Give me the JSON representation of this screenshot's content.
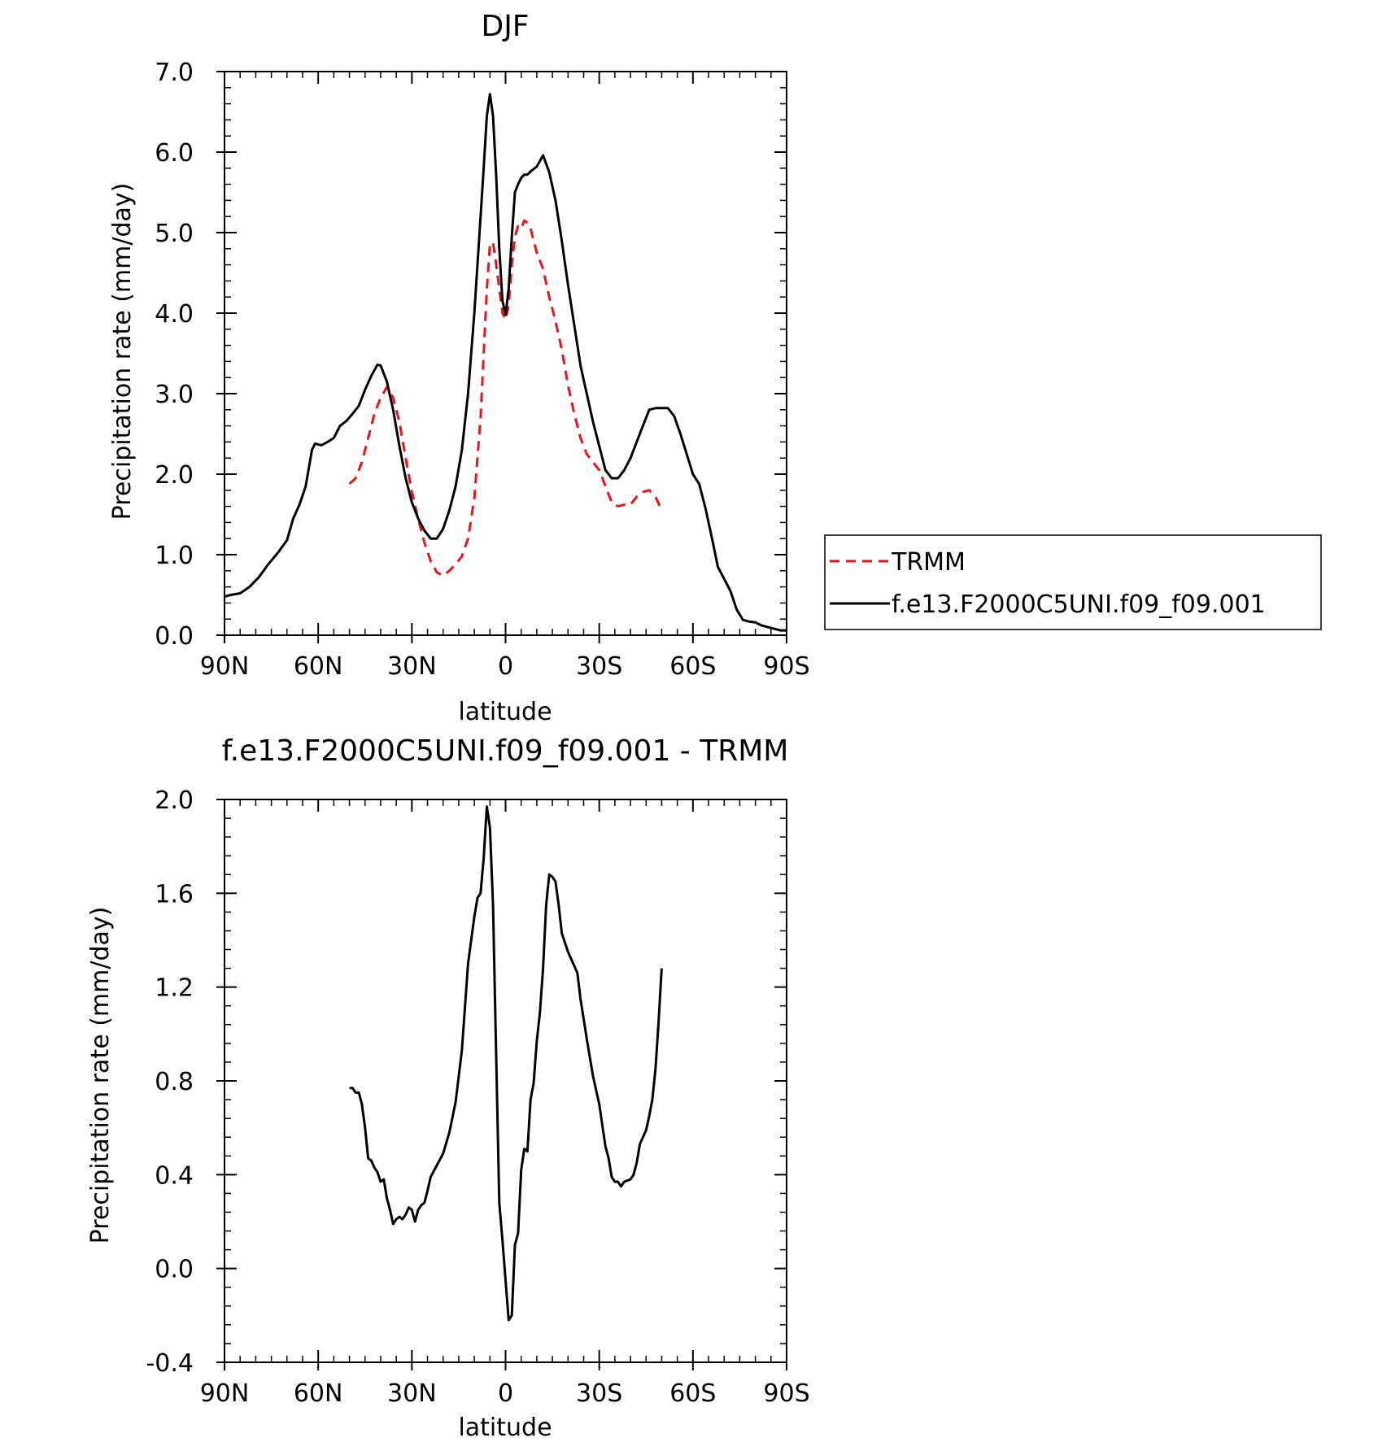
{
  "chart_data": [
    {
      "type": "line",
      "title": "DJF",
      "xlabel": "latitude",
      "ylabel": "Precipitation rate (mm/day)",
      "xlim": [
        90,
        -90
      ],
      "ylim": [
        0,
        7
      ],
      "xticks": [
        {
          "value": 90,
          "label": "90N"
        },
        {
          "value": 60,
          "label": "60N"
        },
        {
          "value": 30,
          "label": "30N"
        },
        {
          "value": 0,
          "label": "0"
        },
        {
          "value": -30,
          "label": "30S"
        },
        {
          "value": -60,
          "label": "60S"
        },
        {
          "value": -90,
          "label": "90S"
        }
      ],
      "yticks": [
        {
          "value": 0,
          "label": "0.0"
        },
        {
          "value": 1,
          "label": "1.0"
        },
        {
          "value": 2,
          "label": "2.0"
        },
        {
          "value": 3,
          "label": "3.0"
        },
        {
          "value": 4,
          "label": "4.0"
        },
        {
          "value": 5,
          "label": "5.0"
        },
        {
          "value": 6,
          "label": "6.0"
        },
        {
          "value": 7,
          "label": "7.0"
        }
      ],
      "legend_position": "right",
      "series": [
        {
          "name": "TRMM",
          "color": "#e8141b",
          "style": "dashed",
          "points": [
            [
              50,
              1.88
            ],
            [
              48,
              1.95
            ],
            [
              46,
              2.15
            ],
            [
              44,
              2.45
            ],
            [
              42,
              2.75
            ],
            [
              40,
              2.95
            ],
            [
              38,
              3.08
            ],
            [
              36,
              2.95
            ],
            [
              34,
              2.65
            ],
            [
              32,
              2.2
            ],
            [
              30,
              1.78
            ],
            [
              28,
              1.45
            ],
            [
              26,
              1.15
            ],
            [
              24,
              0.92
            ],
            [
              22,
              0.78
            ],
            [
              20,
              0.74
            ],
            [
              18,
              0.8
            ],
            [
              16,
              0.88
            ],
            [
              14,
              0.98
            ],
            [
              12,
              1.2
            ],
            [
              10,
              1.7
            ],
            [
              8,
              2.7
            ],
            [
              7,
              3.5
            ],
            [
              6,
              4.3
            ],
            [
              5,
              4.85
            ],
            [
              4,
              4.88
            ],
            [
              3,
              4.6
            ],
            [
              2,
              4.3
            ],
            [
              1,
              4.0
            ],
            [
              0,
              3.92
            ],
            [
              -1,
              4.1
            ],
            [
              -2,
              4.6
            ],
            [
              -3,
              4.95
            ],
            [
              -4,
              5.08
            ],
            [
              -5,
              5.05
            ],
            [
              -6,
              5.15
            ],
            [
              -7,
              5.12
            ],
            [
              -8,
              5.05
            ],
            [
              -10,
              4.75
            ],
            [
              -12,
              4.55
            ],
            [
              -14,
              4.2
            ],
            [
              -16,
              3.9
            ],
            [
              -18,
              3.55
            ],
            [
              -20,
              3.1
            ],
            [
              -22,
              2.75
            ],
            [
              -24,
              2.45
            ],
            [
              -26,
              2.25
            ],
            [
              -28,
              2.15
            ],
            [
              -30,
              2.05
            ],
            [
              -32,
              1.85
            ],
            [
              -34,
              1.65
            ],
            [
              -36,
              1.6
            ],
            [
              -38,
              1.62
            ],
            [
              -40,
              1.62
            ],
            [
              -42,
              1.72
            ],
            [
              -44,
              1.78
            ],
            [
              -46,
              1.8
            ],
            [
              -48,
              1.72
            ],
            [
              -50,
              1.55
            ]
          ]
        },
        {
          "name": "f.e13.F2000C5UNI.f09_f09.001",
          "color": "#000000",
          "style": "solid",
          "points": [
            [
              90,
              0.48
            ],
            [
              88,
              0.5
            ],
            [
              85,
              0.52
            ],
            [
              82,
              0.6
            ],
            [
              79,
              0.72
            ],
            [
              76,
              0.88
            ],
            [
              73,
              1.02
            ],
            [
              70,
              1.18
            ],
            [
              68,
              1.45
            ],
            [
              66,
              1.62
            ],
            [
              64,
              1.85
            ],
            [
              62,
              2.3
            ],
            [
              61,
              2.38
            ],
            [
              59,
              2.36
            ],
            [
              57,
              2.4
            ],
            [
              55,
              2.45
            ],
            [
              53,
              2.6
            ],
            [
              51,
              2.66
            ],
            [
              49,
              2.75
            ],
            [
              47,
              2.85
            ],
            [
              45,
              3.05
            ],
            [
              43,
              3.22
            ],
            [
              41,
              3.36
            ],
            [
              40,
              3.35
            ],
            [
              38,
              3.15
            ],
            [
              36,
              2.8
            ],
            [
              34,
              2.35
            ],
            [
              32,
              1.95
            ],
            [
              30,
              1.65
            ],
            [
              28,
              1.45
            ],
            [
              26,
              1.3
            ],
            [
              24,
              1.2
            ],
            [
              22,
              1.2
            ],
            [
              20,
              1.32
            ],
            [
              18,
              1.55
            ],
            [
              16,
              1.85
            ],
            [
              14,
              2.3
            ],
            [
              12,
              3.0
            ],
            [
              10,
              4.0
            ],
            [
              8,
              5.2
            ],
            [
              7,
              5.8
            ],
            [
              6,
              6.45
            ],
            [
              5,
              6.72
            ],
            [
              4,
              6.45
            ],
            [
              3,
              5.7
            ],
            [
              2,
              4.8
            ],
            [
              1,
              4.15
            ],
            [
              0,
              3.98
            ],
            [
              -1,
              4.3
            ],
            [
              -2,
              4.95
            ],
            [
              -3,
              5.5
            ],
            [
              -4,
              5.6
            ],
            [
              -5,
              5.68
            ],
            [
              -6,
              5.72
            ],
            [
              -7,
              5.72
            ],
            [
              -8,
              5.76
            ],
            [
              -10,
              5.82
            ],
            [
              -12,
              5.96
            ],
            [
              -14,
              5.75
            ],
            [
              -16,
              5.4
            ],
            [
              -18,
              4.9
            ],
            [
              -20,
              4.35
            ],
            [
              -22,
              3.85
            ],
            [
              -24,
              3.35
            ],
            [
              -26,
              3.0
            ],
            [
              -28,
              2.65
            ],
            [
              -30,
              2.35
            ],
            [
              -32,
              2.05
            ],
            [
              -34,
              1.95
            ],
            [
              -36,
              1.95
            ],
            [
              -38,
              2.05
            ],
            [
              -40,
              2.2
            ],
            [
              -42,
              2.4
            ],
            [
              -44,
              2.6
            ],
            [
              -46,
              2.8
            ],
            [
              -48,
              2.82
            ],
            [
              -50,
              2.82
            ],
            [
              -52,
              2.82
            ],
            [
              -54,
              2.72
            ],
            [
              -56,
              2.5
            ],
            [
              -58,
              2.25
            ],
            [
              -60,
              2.0
            ],
            [
              -62,
              1.88
            ],
            [
              -64,
              1.58
            ],
            [
              -66,
              1.22
            ],
            [
              -68,
              0.85
            ],
            [
              -70,
              0.7
            ],
            [
              -72,
              0.55
            ],
            [
              -74,
              0.32
            ],
            [
              -76,
              0.19
            ],
            [
              -78,
              0.17
            ],
            [
              -80,
              0.16
            ],
            [
              -82,
              0.12
            ],
            [
              -84,
              0.1
            ],
            [
              -86,
              0.08
            ],
            [
              -88,
              0.06
            ],
            [
              -90,
              0.06
            ]
          ]
        }
      ]
    },
    {
      "type": "line",
      "title": "f.e13.F2000C5UNI.f09_f09.001 - TRMM",
      "xlabel": "latitude",
      "ylabel": "Precipitation rate (mm/day)",
      "xlim": [
        90,
        -90
      ],
      "ylim": [
        -0.4,
        2.0
      ],
      "xticks": [
        {
          "value": 90,
          "label": "90N"
        },
        {
          "value": 60,
          "label": "60N"
        },
        {
          "value": 30,
          "label": "30N"
        },
        {
          "value": 0,
          "label": "0"
        },
        {
          "value": -30,
          "label": "30S"
        },
        {
          "value": -60,
          "label": "60S"
        },
        {
          "value": -90,
          "label": "90S"
        }
      ],
      "yticks": [
        {
          "value": -0.4,
          "label": "-0.4"
        },
        {
          "value": 0.0,
          "label": "0.0"
        },
        {
          "value": 0.4,
          "label": "0.4"
        },
        {
          "value": 0.8,
          "label": "0.8"
        },
        {
          "value": 1.2,
          "label": "1.2"
        },
        {
          "value": 1.6,
          "label": "1.6"
        },
        {
          "value": 2.0,
          "label": "2.0"
        }
      ],
      "series": [
        {
          "color": "#000000",
          "style": "solid",
          "points": [
            [
              50,
              0.77
            ],
            [
              49,
              0.77
            ],
            [
              48,
              0.75
            ],
            [
              47,
              0.75
            ],
            [
              46,
              0.7
            ],
            [
              45,
              0.6
            ],
            [
              44,
              0.47
            ],
            [
              43,
              0.46
            ],
            [
              42,
              0.43
            ],
            [
              41,
              0.41
            ],
            [
              40,
              0.37
            ],
            [
              39,
              0.38
            ],
            [
              38,
              0.3
            ],
            [
              37,
              0.25
            ],
            [
              36,
              0.19
            ],
            [
              35,
              0.21
            ],
            [
              34,
              0.22
            ],
            [
              33,
              0.21
            ],
            [
              32,
              0.23
            ],
            [
              31,
              0.26
            ],
            [
              30,
              0.25
            ],
            [
              29,
              0.2
            ],
            [
              28,
              0.25
            ],
            [
              27,
              0.27
            ],
            [
              26,
              0.28
            ],
            [
              25,
              0.33
            ],
            [
              24,
              0.39
            ],
            [
              22,
              0.44
            ],
            [
              20,
              0.49
            ],
            [
              18,
              0.58
            ],
            [
              16,
              0.71
            ],
            [
              14,
              0.93
            ],
            [
              12,
              1.3
            ],
            [
              10,
              1.5
            ],
            [
              9,
              1.58
            ],
            [
              8,
              1.6
            ],
            [
              7,
              1.75
            ],
            [
              6,
              1.97
            ],
            [
              5,
              1.88
            ],
            [
              4,
              1.55
            ],
            [
              3,
              0.9
            ],
            [
              2,
              0.28
            ],
            [
              1,
              0.12
            ],
            [
              0,
              -0.05
            ],
            [
              -1,
              -0.22
            ],
            [
              -2,
              -0.2
            ],
            [
              -3,
              0.1
            ],
            [
              -4,
              0.15
            ],
            [
              -5,
              0.42
            ],
            [
              -6,
              0.51
            ],
            [
              -7,
              0.5
            ],
            [
              -8,
              0.72
            ],
            [
              -9,
              0.79
            ],
            [
              -10,
              0.97
            ],
            [
              -11,
              1.09
            ],
            [
              -12,
              1.28
            ],
            [
              -13,
              1.55
            ],
            [
              -14,
              1.68
            ],
            [
              -15,
              1.67
            ],
            [
              -16,
              1.65
            ],
            [
              -17,
              1.55
            ],
            [
              -18,
              1.43
            ],
            [
              -20,
              1.35
            ],
            [
              -22,
              1.29
            ],
            [
              -23,
              1.26
            ],
            [
              -24,
              1.15
            ],
            [
              -26,
              0.98
            ],
            [
              -28,
              0.82
            ],
            [
              -30,
              0.7
            ],
            [
              -32,
              0.52
            ],
            [
              -33,
              0.47
            ],
            [
              -34,
              0.39
            ],
            [
              -35,
              0.37
            ],
            [
              -36,
              0.37
            ],
            [
              -37,
              0.35
            ],
            [
              -38,
              0.37
            ],
            [
              -40,
              0.38
            ],
            [
              -41,
              0.4
            ],
            [
              -42,
              0.45
            ],
            [
              -43,
              0.53
            ],
            [
              -44,
              0.56
            ],
            [
              -45,
              0.59
            ],
            [
              -46,
              0.65
            ],
            [
              -47,
              0.72
            ],
            [
              -48,
              0.85
            ],
            [
              -49,
              1.05
            ],
            [
              -50,
              1.28
            ]
          ]
        }
      ]
    }
  ]
}
